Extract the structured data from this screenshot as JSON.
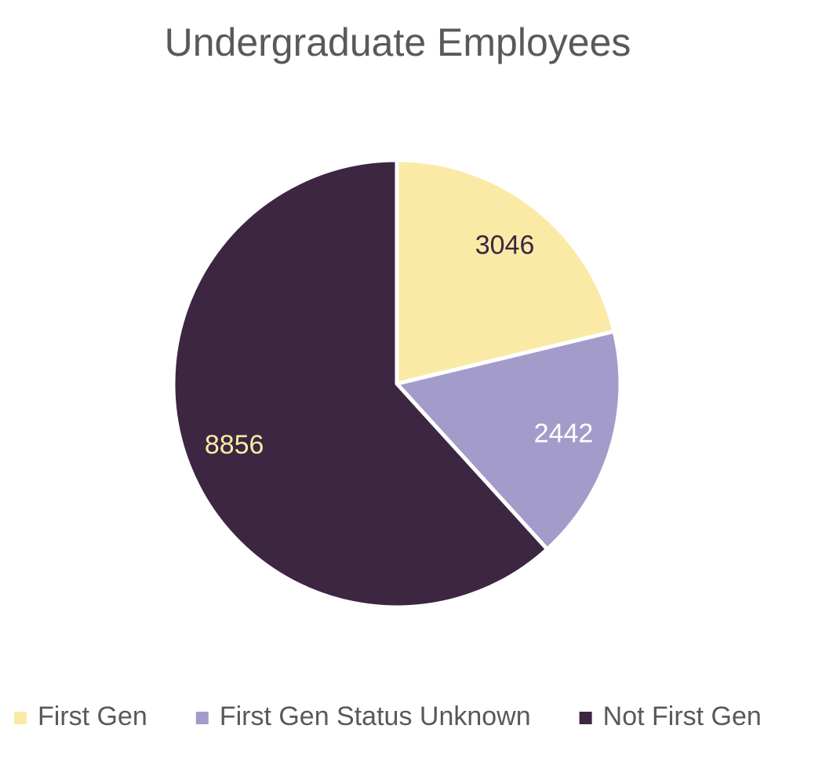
{
  "chart_data": {
    "type": "pie",
    "title": "Undergraduate Employees",
    "categories": [
      "First Gen",
      "First Gen Status Unknown",
      "Not First Gen"
    ],
    "values": [
      3046,
      2442,
      8856
    ],
    "colors": [
      "#faeaa6",
      "#a39ccb",
      "#3c2641"
    ],
    "label_colors": [
      "#3c2641",
      "#ffffff",
      "#faeaa6"
    ],
    "legend": "bottom"
  }
}
